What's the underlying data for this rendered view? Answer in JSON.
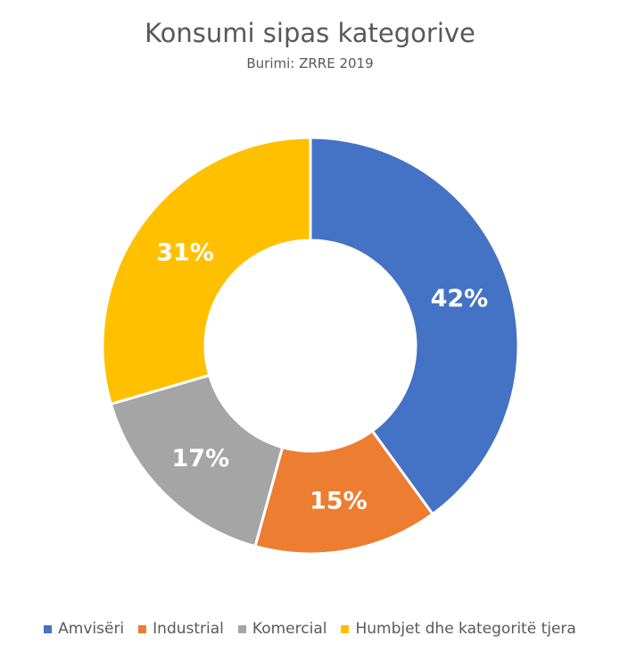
{
  "chart_data": {
    "type": "pie",
    "variant": "donut",
    "title": "Konsumi sipas kategorive",
    "subtitle": "Burimi: ZRRE 2019",
    "categories": [
      "Amvisëri",
      "Industrial",
      "Komercial",
      "Humbjet dhe kategoritë tjera"
    ],
    "values": [
      42,
      15,
      17,
      31
    ],
    "labels": [
      "42%",
      "15%",
      "17%",
      "31%"
    ],
    "colors": [
      "#4472C4",
      "#ED7D31",
      "#A5A5A5",
      "#FFC000"
    ],
    "legend_position": "bottom"
  }
}
